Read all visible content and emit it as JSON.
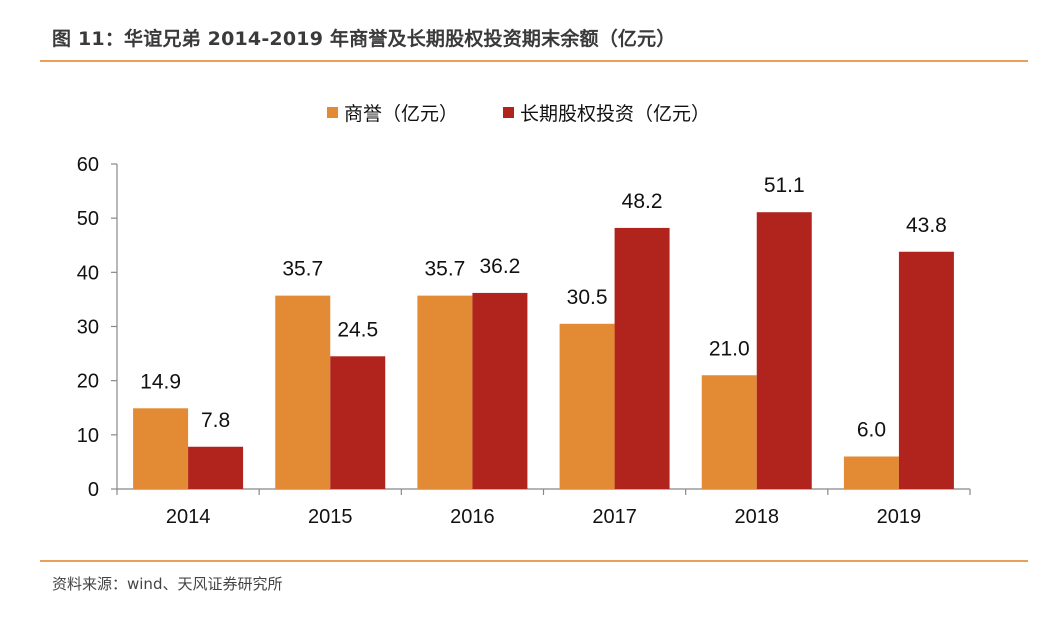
{
  "figure": {
    "title": "图 11：华谊兄弟 2014-2019 年商誉及长期股权投资期末余额（亿元）",
    "source": "资料来源：wind、天风证券研究所",
    "accent_color": "#E8A05A"
  },
  "chart_data": {
    "type": "bar",
    "title": "华谊兄弟 2014-2019 年商誉及长期股权投资期末余额（亿元）",
    "xlabel": "",
    "ylabel": "",
    "categories": [
      "2014",
      "2015",
      "2016",
      "2017",
      "2018",
      "2019"
    ],
    "series": [
      {
        "name": "商誉（亿元）",
        "color": "#E38A34",
        "values": [
          14.9,
          35.7,
          35.7,
          30.5,
          21.0,
          6.0
        ],
        "labels": [
          "14.9",
          "35.7",
          "35.7",
          "30.5",
          "21.0",
          "6.0"
        ]
      },
      {
        "name": "长期股权投资（亿元）",
        "color": "#B0241D",
        "values": [
          7.8,
          24.5,
          36.2,
          48.2,
          51.1,
          43.8
        ],
        "labels": [
          "7.8",
          "24.5",
          "36.2",
          "48.2",
          "51.1",
          "43.8"
        ]
      }
    ],
    "ylim": [
      0,
      60
    ],
    "yticks": [
      0,
      10,
      20,
      30,
      40,
      50,
      60
    ],
    "grid": false,
    "legend_position": "top-center"
  }
}
